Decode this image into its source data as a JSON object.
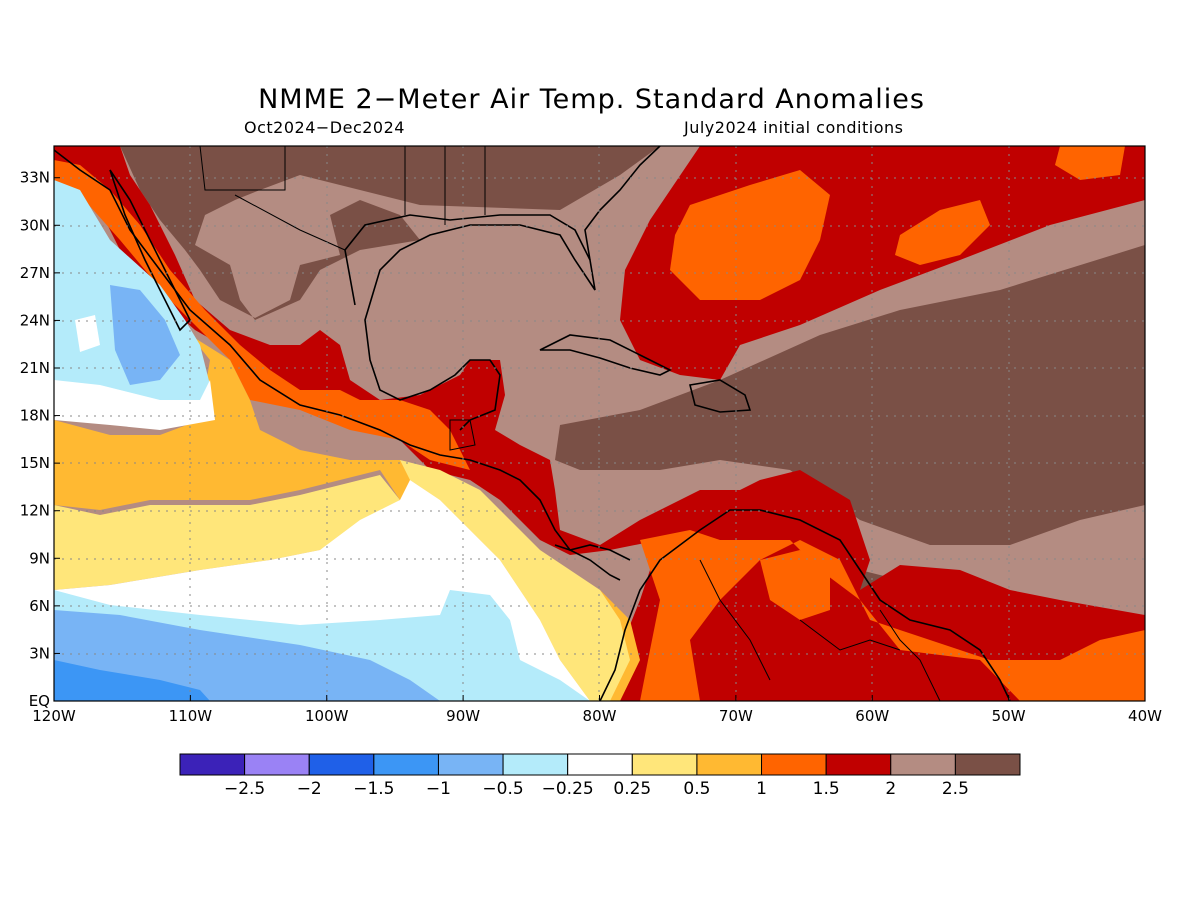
{
  "title": "NMME 2−Meter Air Temp. Standard Anomalies",
  "subtitle_left": "Oct2024−Dec2024",
  "subtitle_right": "July2024 initial conditions",
  "map": {
    "lon_range": [
      -120,
      -40
    ],
    "lat_range": [
      0,
      35
    ],
    "lat_ticks": [
      "EQ",
      "3N",
      "6N",
      "9N",
      "12N",
      "15N",
      "18N",
      "21N",
      "24N",
      "27N",
      "30N",
      "33N"
    ],
    "lon_ticks": [
      "120W",
      "110W",
      "100W",
      "90W",
      "80W",
      "70W",
      "60W",
      "50W",
      "40W"
    ],
    "grid": "dotted"
  },
  "colorbar": {
    "colors": [
      "#3b22b8",
      "#9a82f5",
      "#1f60e8",
      "#3c96f5",
      "#78b4f5",
      "#b4ebfa",
      "#ffffff",
      "#ffe67a",
      "#ffb932",
      "#ff6400",
      "#c00000",
      "#b48c82",
      "#7a5046"
    ],
    "labels": [
      "−2.5",
      "−2",
      "−1.5",
      "−1",
      "−0.5",
      "−0.25",
      "0.25",
      "0.5",
      "1",
      "1.5",
      "2",
      "2.5"
    ]
  }
}
